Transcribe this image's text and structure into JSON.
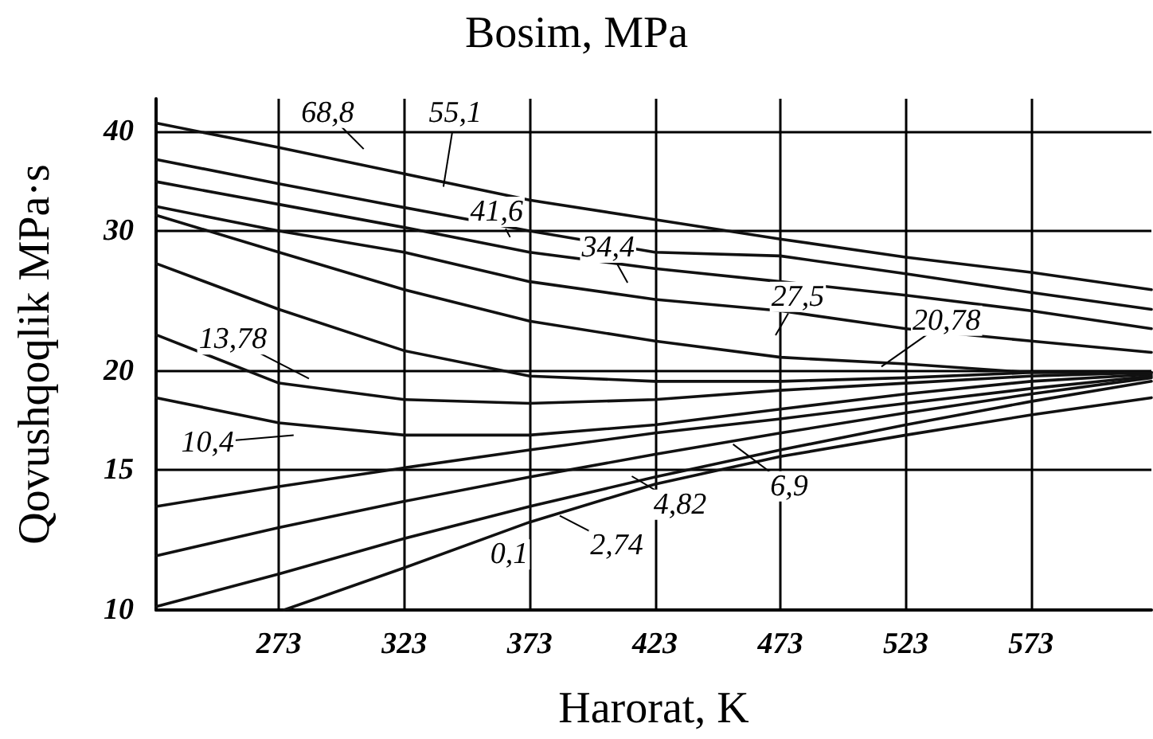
{
  "chart_data": {
    "type": "line",
    "title": "Bosim, MPa",
    "xlabel": "Harorat, K",
    "ylabel": "Qovushqoqlik MPa·s",
    "xlim": [
      224,
      621
    ],
    "xticks": [
      273,
      323,
      373,
      423,
      473,
      523,
      573
    ],
    "ylim": [
      10,
      44
    ],
    "yticks": [
      10,
      15,
      20,
      30,
      40
    ],
    "log": "y",
    "grid": true,
    "marker": "none",
    "line_style": "solid",
    "x": [
      224,
      273,
      323,
      373,
      423,
      473,
      523,
      573,
      621
    ],
    "series": [
      {
        "color": "#111111",
        "values": [
          41.0,
          38.2,
          35.4,
          32.8,
          31.0,
          29.3,
          27.8,
          26.6,
          25.3
        ]
      },
      {
        "color": "#111111",
        "values": [
          36.9,
          34.4,
          32.1,
          30.0,
          28.2,
          27.9,
          26.5,
          25.1,
          23.9
        ]
      },
      {
        "color": "#111111",
        "values": [
          34.6,
          32.4,
          30.3,
          28.2,
          26.9,
          25.9,
          24.9,
          23.8,
          22.6
        ]
      },
      {
        "color": "#111111",
        "values": [
          32.2,
          30.0,
          28.2,
          25.9,
          24.6,
          23.8,
          22.6,
          21.8,
          21.1
        ]
      },
      {
        "color": "#111111",
        "values": [
          31.4,
          28.2,
          25.3,
          23.1,
          21.8,
          20.8,
          20.4,
          19.9,
          19.9
        ]
      },
      {
        "color": "#111111",
        "values": [
          27.3,
          23.9,
          21.2,
          19.7,
          19.4,
          19.4,
          19.6,
          19.9,
          19.9
        ]
      },
      {
        "color": "#111111",
        "values": [
          22.2,
          19.3,
          18.4,
          18.2,
          18.4,
          18.9,
          19.3,
          19.7,
          19.9
        ]
      },
      {
        "color": "#111111",
        "values": [
          18.5,
          17.2,
          16.6,
          16.6,
          17.1,
          17.9,
          18.7,
          19.4,
          19.8
        ]
      },
      {
        "color": "#111111",
        "values": [
          13.5,
          14.3,
          15.1,
          15.9,
          16.7,
          17.4,
          18.2,
          19.0,
          19.7
        ]
      },
      {
        "color": "#111111",
        "values": [
          11.7,
          12.7,
          13.7,
          14.7,
          15.7,
          16.7,
          17.7,
          18.7,
          19.6
        ]
      },
      {
        "color": "#111111",
        "values": [
          10.1,
          11.1,
          12.3,
          13.5,
          14.7,
          15.9,
          17.1,
          18.3,
          19.4
        ]
      },
      {
        "color": "#111111",
        "x": [
          275,
          323,
          373,
          423,
          473,
          523,
          573,
          621
        ],
        "values": [
          10.0,
          11.3,
          12.9,
          14.4,
          15.6,
          16.6,
          17.6,
          18.5
        ]
      }
    ],
    "annotations": [
      {
        "text": "68,8",
        "x": 314,
        "y": 36.1
      },
      {
        "text": "55,1",
        "x": 337,
        "y": 31.7
      },
      {
        "text": "41,6",
        "x": 370,
        "y": 27.6
      },
      {
        "text": "34,4",
        "x": 417,
        "y": 24.2
      },
      {
        "text": "27,5",
        "x": 466,
        "y": 20.8
      },
      {
        "text": "20,78",
        "x": 505,
        "y": 19.4
      },
      {
        "text": "13,78",
        "x": 294,
        "y": 18.9
      },
      {
        "text": "10,4",
        "x": 289,
        "y": 16.7
      },
      {
        "text": "6,9",
        "x": 446,
        "y": 16.9
      },
      {
        "text": "4,82",
        "x": 405,
        "y": 15.3
      },
      {
        "text": "2,74",
        "x": 376,
        "y": 13.6
      },
      {
        "text": "0,1",
        "x": 356,
        "y": 12.3
      }
    ]
  }
}
